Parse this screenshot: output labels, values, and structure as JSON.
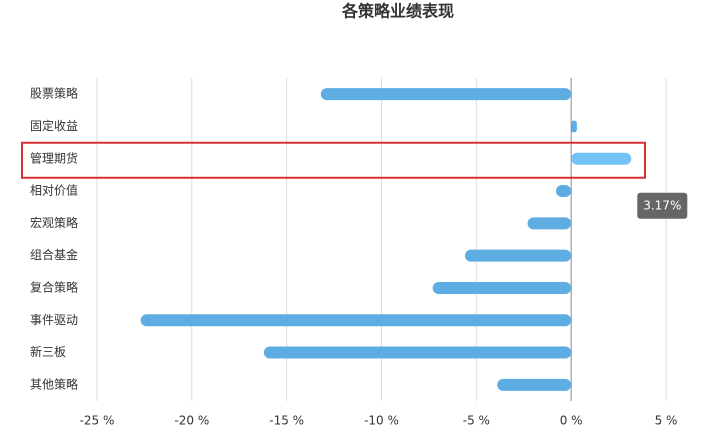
{
  "chart_data": {
    "type": "hbar",
    "title": "各策略业绩表现",
    "categories": [
      "股票策略",
      "固定收益",
      "管理期货",
      "相对价值",
      "宏观策略",
      "组合基金",
      "复合策略",
      "事件驱动",
      "新三板",
      "其他策略"
    ],
    "values": [
      -13.2,
      0.3,
      3.17,
      -0.8,
      -2.3,
      -5.6,
      -7.3,
      -22.7,
      -16.2,
      -3.9
    ],
    "value_labels": [
      null,
      null,
      "3.17%",
      null,
      null,
      null,
      null,
      null,
      null,
      null
    ],
    "color": "#5dade2",
    "highlight": "管理期货",
    "highlight_color": "#74c3f7",
    "xlim": [
      -25,
      5
    ],
    "xticks": [
      {
        "value": -25,
        "label": "-25 %"
      },
      {
        "value": -20,
        "label": "-20 %"
      },
      {
        "value": -15,
        "label": "-15 %"
      },
      {
        "value": -10,
        "label": "-10 %"
      },
      {
        "value": -5,
        "label": "-5 %"
      },
      {
        "value": 0,
        "label": "0 %"
      },
      {
        "value": 5,
        "label": "5 %"
      }
    ],
    "grid": true
  }
}
